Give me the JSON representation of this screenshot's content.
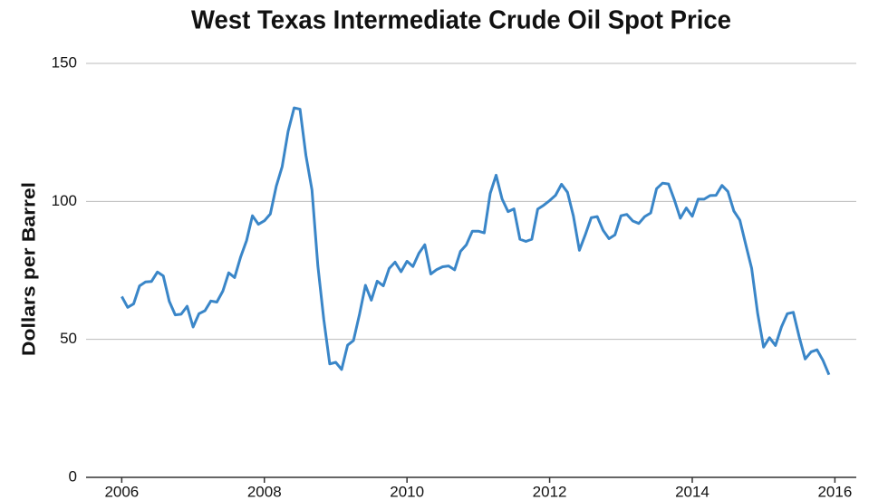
{
  "chart_data": {
    "type": "line",
    "title": "West Texas Intermediate Crude Oil Spot Price",
    "y_label": "Dollars per Barrel",
    "x": [
      2006.0,
      2006.083,
      2006.167,
      2006.25,
      2006.333,
      2006.417,
      2006.5,
      2006.583,
      2006.667,
      2006.75,
      2006.833,
      2006.917,
      2007.0,
      2007.083,
      2007.167,
      2007.25,
      2007.333,
      2007.417,
      2007.5,
      2007.583,
      2007.667,
      2007.75,
      2007.833,
      2007.917,
      2008.0,
      2008.083,
      2008.167,
      2008.25,
      2008.333,
      2008.417,
      2008.5,
      2008.583,
      2008.667,
      2008.75,
      2008.833,
      2008.917,
      2009.0,
      2009.083,
      2009.167,
      2009.25,
      2009.333,
      2009.417,
      2009.5,
      2009.583,
      2009.667,
      2009.75,
      2009.833,
      2009.917,
      2010.0,
      2010.083,
      2010.167,
      2010.25,
      2010.333,
      2010.417,
      2010.5,
      2010.583,
      2010.667,
      2010.75,
      2010.833,
      2010.917,
      2011.0,
      2011.083,
      2011.167,
      2011.25,
      2011.333,
      2011.417,
      2011.5,
      2011.583,
      2011.667,
      2011.75,
      2011.833,
      2011.917,
      2012.0,
      2012.083,
      2012.167,
      2012.25,
      2012.333,
      2012.417,
      2012.5,
      2012.583,
      2012.667,
      2012.75,
      2012.833,
      2012.917,
      2013.0,
      2013.083,
      2013.167,
      2013.25,
      2013.333,
      2013.417,
      2013.5,
      2013.583,
      2013.667,
      2013.75,
      2013.833,
      2013.917,
      2014.0,
      2014.083,
      2014.167,
      2014.25,
      2014.333,
      2014.417,
      2014.5,
      2014.583,
      2014.667,
      2014.75,
      2014.833,
      2014.917,
      2015.0,
      2015.083,
      2015.167,
      2015.25,
      2015.333,
      2015.417,
      2015.5,
      2015.583,
      2015.667,
      2015.75,
      2015.833,
      2015.917
    ],
    "series": [
      {
        "color": "#3a86c8",
        "values": [
          65.5,
          61.6,
          62.9,
          69.4,
          70.8,
          71.0,
          74.4,
          73.0,
          63.8,
          58.9,
          59.1,
          62.0,
          54.5,
          59.3,
          60.4,
          63.9,
          63.5,
          67.5,
          74.1,
          72.4,
          79.9,
          85.8,
          94.8,
          91.7,
          93.0,
          95.4,
          105.5,
          112.6,
          125.4,
          133.9,
          133.4,
          116.7,
          104.1,
          76.6,
          57.3,
          41.1,
          41.7,
          39.1,
          47.9,
          49.6,
          59.0,
          69.6,
          64.2,
          71.1,
          69.4,
          75.7,
          78.0,
          74.5,
          78.3,
          76.4,
          81.2,
          84.3,
          73.7,
          75.3,
          76.3,
          76.6,
          75.2,
          81.9,
          84.3,
          89.2,
          89.2,
          88.6,
          102.9,
          109.5,
          100.9,
          96.3,
          97.3,
          86.3,
          85.5,
          86.3,
          97.2,
          98.6,
          100.3,
          102.2,
          106.2,
          103.3,
          94.7,
          82.3,
          87.9,
          94.1,
          94.5,
          89.5,
          86.5,
          87.9,
          94.8,
          95.3,
          92.9,
          92.0,
          94.5,
          95.8,
          104.6,
          106.6,
          106.3,
          100.5,
          93.9,
          97.6,
          94.6,
          100.8,
          100.8,
          102.1,
          102.2,
          105.8,
          103.6,
          96.5,
          93.2,
          84.4,
          75.8,
          59.3,
          47.2,
          50.6,
          47.8,
          54.5,
          59.3,
          59.8,
          50.9,
          42.9,
          45.5,
          46.2,
          42.4,
          37.2
        ]
      }
    ],
    "xlim": [
      2005.5,
      2016.3
    ],
    "xticks": [
      2006,
      2008,
      2010,
      2012,
      2014,
      2016
    ],
    "ylim": [
      0,
      150
    ],
    "yticks": [
      0,
      50,
      100,
      150
    ],
    "grid": true
  }
}
